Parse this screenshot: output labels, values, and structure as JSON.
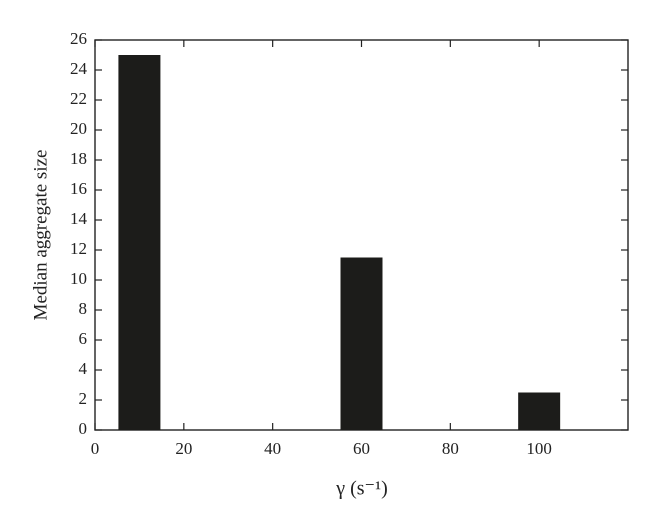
{
  "chart_data": {
    "type": "bar",
    "x": [
      10,
      60,
      100
    ],
    "values": [
      25,
      11.5,
      2.5
    ],
    "color": "#1c1c1a",
    "xlabel": "γ (s⁻¹)",
    "ylabel": "Median aggregate size",
    "xlim": [
      0,
      120
    ],
    "xticks": [
      0,
      20,
      40,
      60,
      80,
      100
    ],
    "ylim": [
      0,
      26
    ],
    "yticks": [
      0,
      2,
      4,
      6,
      8,
      10,
      12,
      14,
      16,
      18,
      20,
      22,
      24,
      26
    ]
  }
}
